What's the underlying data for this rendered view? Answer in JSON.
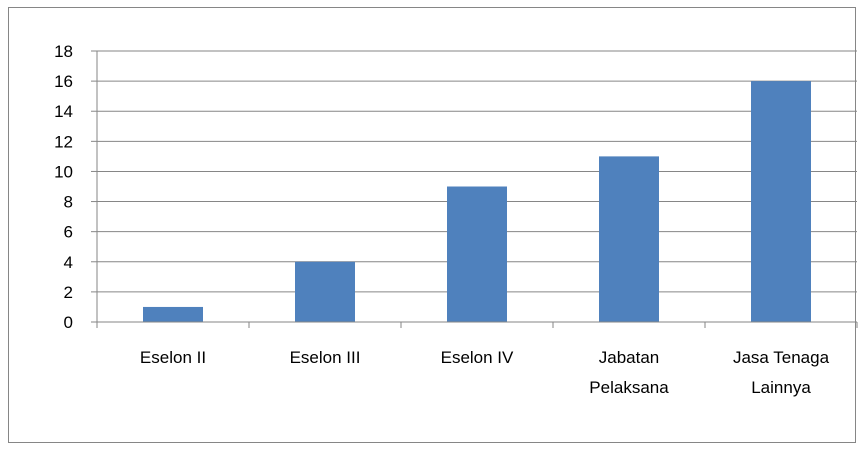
{
  "chart_data": {
    "type": "bar",
    "title": "",
    "xlabel": "",
    "ylabel": "",
    "categories": [
      [
        "Eselon II"
      ],
      [
        "Eselon III"
      ],
      [
        "Eselon IV"
      ],
      [
        "Jabatan",
        "Pelaksana"
      ],
      [
        "Jasa Tenaga",
        "Lainnya"
      ]
    ],
    "values": [
      1,
      4,
      9,
      11,
      16
    ],
    "ylim": [
      0,
      18
    ],
    "yticks": [
      0,
      2,
      4,
      6,
      8,
      10,
      12,
      14,
      16,
      18
    ],
    "grid": true,
    "legend": "none",
    "colors": {
      "bar": "#4f81bd",
      "grid": "#868686",
      "axis": "#868686",
      "text": "#000000"
    }
  }
}
